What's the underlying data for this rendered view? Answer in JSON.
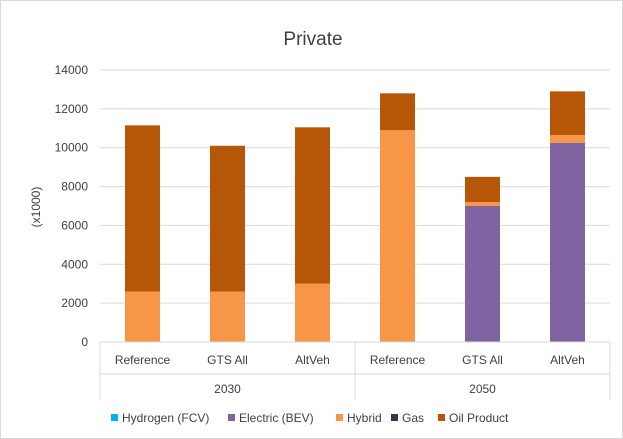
{
  "chart_data": {
    "type": "bar",
    "stacked": true,
    "title": "Private",
    "ylabel": "(x1000)",
    "xlabel": "",
    "ylim": [
      0,
      14000
    ],
    "yticks": [
      0,
      2000,
      4000,
      6000,
      8000,
      10000,
      12000,
      14000
    ],
    "grid": true,
    "legend_position": "bottom",
    "groups": [
      {
        "label": "2030",
        "categories": [
          "Reference",
          "GTS All",
          "AltVeh"
        ]
      },
      {
        "label": "2050",
        "categories": [
          "Reference",
          "GTS All",
          "AltVeh"
        ]
      }
    ],
    "categories": [
      "Reference",
      "GTS All",
      "AltVeh",
      "Reference",
      "GTS All",
      "AltVeh"
    ],
    "series": [
      {
        "name": "Hydrogen (FCV)",
        "color": "#00b0f0",
        "values": [
          0,
          0,
          0,
          0,
          0,
          0
        ]
      },
      {
        "name": "Electric (BEV)",
        "color": "#8064a2",
        "values": [
          0,
          0,
          0,
          0,
          7000,
          10250
        ]
      },
      {
        "name": "Hybrid",
        "color": "#f79646",
        "values": [
          2600,
          2600,
          3000,
          10900,
          200,
          400
        ]
      },
      {
        "name": "Gas",
        "color": "#403151",
        "values": [
          0,
          0,
          0,
          0,
          0,
          0
        ]
      },
      {
        "name": "Oil Product",
        "color": "#b65708",
        "values": [
          8550,
          7500,
          8050,
          1900,
          1300,
          2250
        ]
      }
    ]
  }
}
